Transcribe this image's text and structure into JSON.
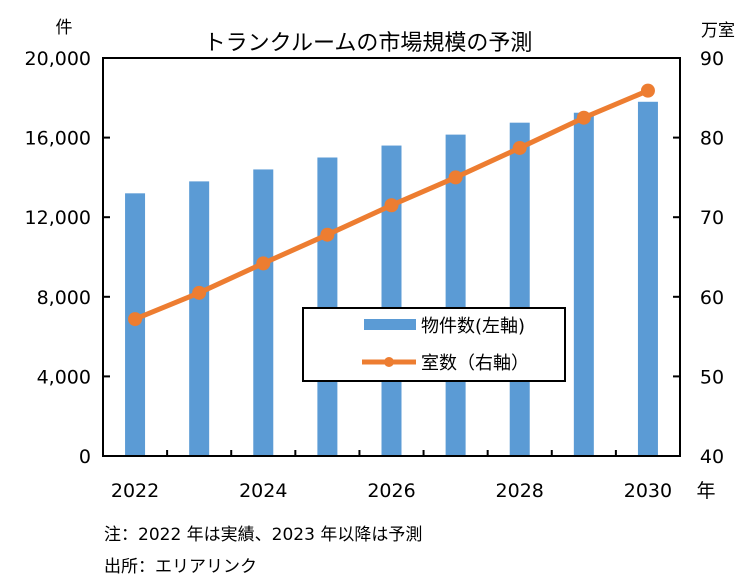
{
  "chart_data": {
    "type": "bar+line",
    "title": "トランクルームの市場規模の予測",
    "categories": [
      "2022",
      "2023",
      "2024",
      "2025",
      "2026",
      "2027",
      "2028",
      "2029",
      "2030"
    ],
    "x_tick_labels": [
      "2022",
      "2024",
      "2026",
      "2028",
      "2030"
    ],
    "xlabel_unit": "年",
    "left_axis": {
      "unit": "件",
      "ylim": [
        0,
        20000
      ],
      "ticks": [
        "0",
        "4,000",
        "8,000",
        "12,000",
        "16,000",
        "20,000"
      ],
      "tick_values": [
        0,
        4000,
        8000,
        12000,
        16000,
        20000
      ]
    },
    "right_axis": {
      "unit": "万室",
      "ylim": [
        40,
        90
      ],
      "ticks": [
        "40",
        "50",
        "60",
        "70",
        "80",
        "90"
      ],
      "tick_values": [
        40,
        50,
        60,
        70,
        80,
        90
      ]
    },
    "series": [
      {
        "name": "物件数(左軸)",
        "type": "bar",
        "axis": "left",
        "color": "#5b9bd5",
        "values": [
          13200,
          13800,
          14400,
          15000,
          15600,
          16150,
          16750,
          17250,
          17800
        ]
      },
      {
        "name": "室数（右軸）",
        "type": "line",
        "axis": "right",
        "color": "#ed7d31",
        "values": [
          57.2,
          60.5,
          64.2,
          67.8,
          71.5,
          75.0,
          78.7,
          82.5,
          85.9
        ]
      }
    ],
    "legend_position": "center-right",
    "grid": false
  },
  "notes": {
    "note": "注：2022 年は実績、2023 年以降は予測",
    "source": "出所：エリアリンク"
  }
}
